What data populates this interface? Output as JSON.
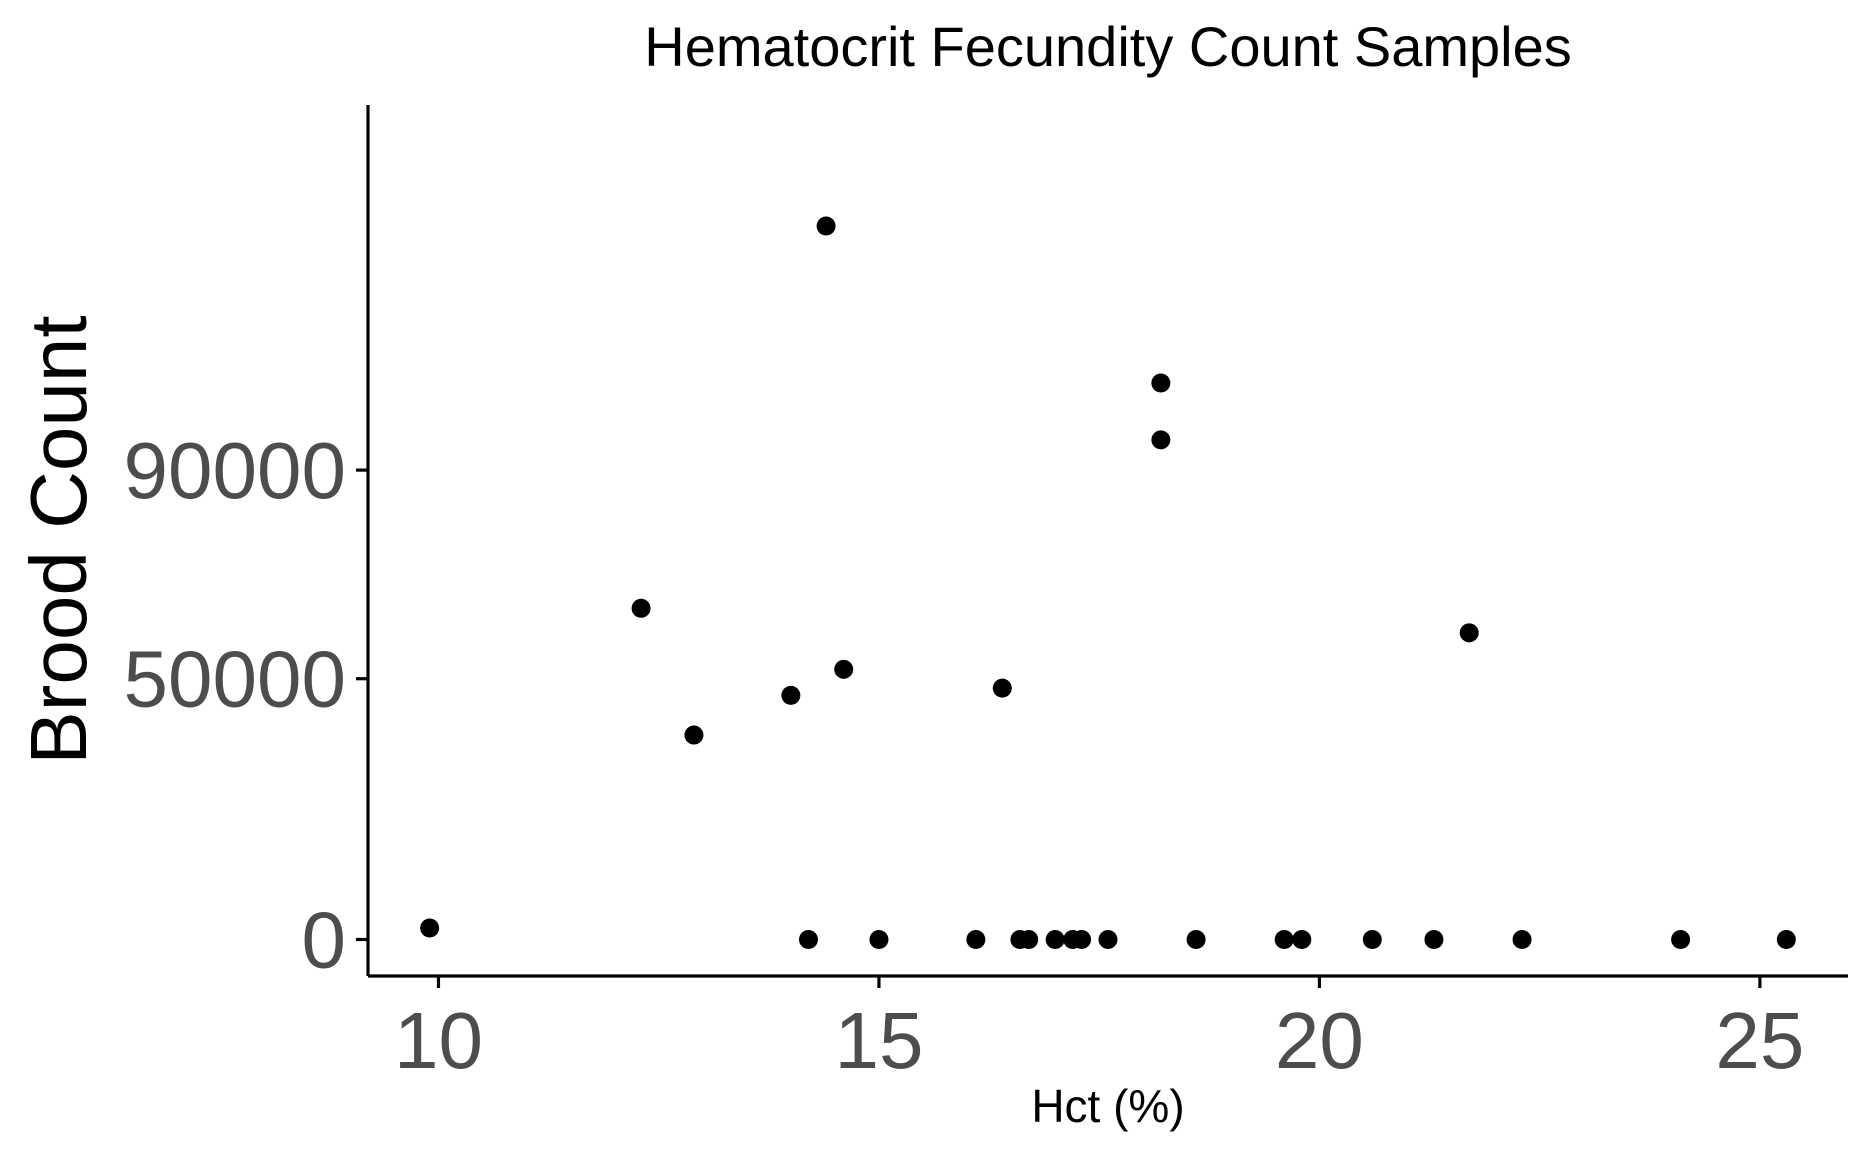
{
  "chart_data": {
    "type": "scatter",
    "title": "Hematocrit Fecundity Count Samples",
    "xlabel": "Hct (%)",
    "ylabel": "Brood Count",
    "xlim": [
      9.2,
      26.0
    ],
    "ylim": [
      -7000,
      160000
    ],
    "xticks": [
      10,
      15,
      20,
      25
    ],
    "xtick_labels": [
      "10",
      "15",
      "20",
      "25"
    ],
    "yticks": [
      0,
      50000,
      90000
    ],
    "ytick_labels": [
      "0",
      "50000",
      "90000"
    ],
    "grid": false,
    "legend": "none",
    "point_color": "#000000",
    "points": [
      {
        "x": 9.9,
        "y": 2200
      },
      {
        "x": 12.3,
        "y": 63500
      },
      {
        "x": 12.9,
        "y": 39200
      },
      {
        "x": 14.0,
        "y": 46800
      },
      {
        "x": 14.2,
        "y": 0
      },
      {
        "x": 14.4,
        "y": 136800
      },
      {
        "x": 14.6,
        "y": 51800
      },
      {
        "x": 15.0,
        "y": 0
      },
      {
        "x": 16.1,
        "y": 0
      },
      {
        "x": 16.4,
        "y": 48200
      },
      {
        "x": 16.6,
        "y": 0
      },
      {
        "x": 16.7,
        "y": 0
      },
      {
        "x": 17.0,
        "y": 0
      },
      {
        "x": 17.2,
        "y": 0
      },
      {
        "x": 17.3,
        "y": 0
      },
      {
        "x": 17.6,
        "y": 0
      },
      {
        "x": 18.2,
        "y": 106700
      },
      {
        "x": 18.2,
        "y": 95800
      },
      {
        "x": 18.6,
        "y": 0
      },
      {
        "x": 19.6,
        "y": 0
      },
      {
        "x": 19.8,
        "y": 0
      },
      {
        "x": 20.6,
        "y": 0
      },
      {
        "x": 21.3,
        "y": 0
      },
      {
        "x": 21.7,
        "y": 58800
      },
      {
        "x": 22.3,
        "y": 0
      },
      {
        "x": 24.1,
        "y": 0
      },
      {
        "x": 25.3,
        "y": 0
      }
    ]
  }
}
